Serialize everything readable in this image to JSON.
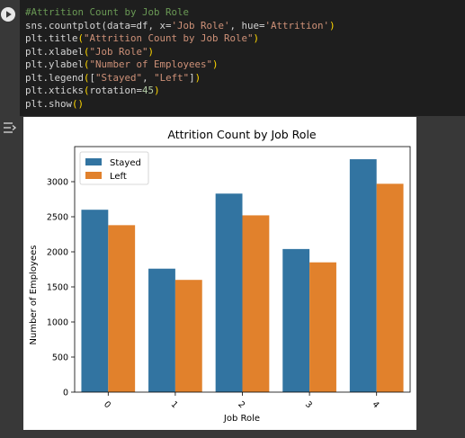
{
  "code_cell": {
    "lines": [
      [
        {
          "t": "comment",
          "v": "#Attrition Count by Job Role"
        }
      ],
      [
        {
          "t": "plain",
          "v": "sns.countplot(data=df, x="
        },
        {
          "t": "str",
          "v": "'Job Role'"
        },
        {
          "t": "plain",
          "v": ", hue="
        },
        {
          "t": "str",
          "v": "'Attrition'"
        },
        {
          "t": "paren",
          "v": ")"
        }
      ],
      [
        {
          "t": "plain",
          "v": "plt.title"
        },
        {
          "t": "paren",
          "v": "("
        },
        {
          "t": "str",
          "v": "\"Attrition Count by Job Role\""
        },
        {
          "t": "paren",
          "v": ")"
        }
      ],
      [
        {
          "t": "plain",
          "v": "plt.xlabel"
        },
        {
          "t": "paren",
          "v": "("
        },
        {
          "t": "str",
          "v": "\"Job Role\""
        },
        {
          "t": "paren",
          "v": ")"
        }
      ],
      [
        {
          "t": "plain",
          "v": "plt.ylabel"
        },
        {
          "t": "paren",
          "v": "("
        },
        {
          "t": "str",
          "v": "\"Number of Employees\""
        },
        {
          "t": "paren",
          "v": ")"
        }
      ],
      [
        {
          "t": "plain",
          "v": "plt.legend"
        },
        {
          "t": "paren",
          "v": "("
        },
        {
          "t": "plain",
          "v": "["
        },
        {
          "t": "str",
          "v": "\"Stayed\""
        },
        {
          "t": "plain",
          "v": ", "
        },
        {
          "t": "str",
          "v": "\"Left\""
        },
        {
          "t": "plain",
          "v": "]"
        },
        {
          "t": "paren",
          "v": ")"
        }
      ],
      [
        {
          "t": "plain",
          "v": "plt.xticks"
        },
        {
          "t": "paren",
          "v": "("
        },
        {
          "t": "plain",
          "v": "rotation="
        },
        {
          "t": "num",
          "v": "45"
        },
        {
          "t": "paren",
          "v": ")"
        }
      ],
      [
        {
          "t": "plain",
          "v": "plt.show"
        },
        {
          "t": "paren",
          "v": "()"
        }
      ]
    ],
    "run_icon": "play-icon",
    "output_icon": "output-toggle-icon"
  },
  "colors": {
    "stayed": "#3274a1",
    "left": "#e1812c",
    "editor_bg": "#1e1e1e",
    "cell_bg": "#383838"
  },
  "chart_data": {
    "type": "bar",
    "title": "Attrition Count by Job Role",
    "xlabel": "Job Role",
    "ylabel": "Number of Employees",
    "categories": [
      "0",
      "1",
      "2",
      "3",
      "4"
    ],
    "series": [
      {
        "name": "Stayed",
        "values": [
          2600,
          1760,
          2830,
          2040,
          3320
        ]
      },
      {
        "name": "Left",
        "values": [
          2380,
          1600,
          2520,
          1850,
          2970
        ]
      }
    ],
    "ylim": [
      0,
      3500
    ],
    "yticks": [
      0,
      500,
      1000,
      1500,
      2000,
      2500,
      3000
    ],
    "xtick_rotation": 45,
    "legend_position": "top-left",
    "grid": false
  }
}
